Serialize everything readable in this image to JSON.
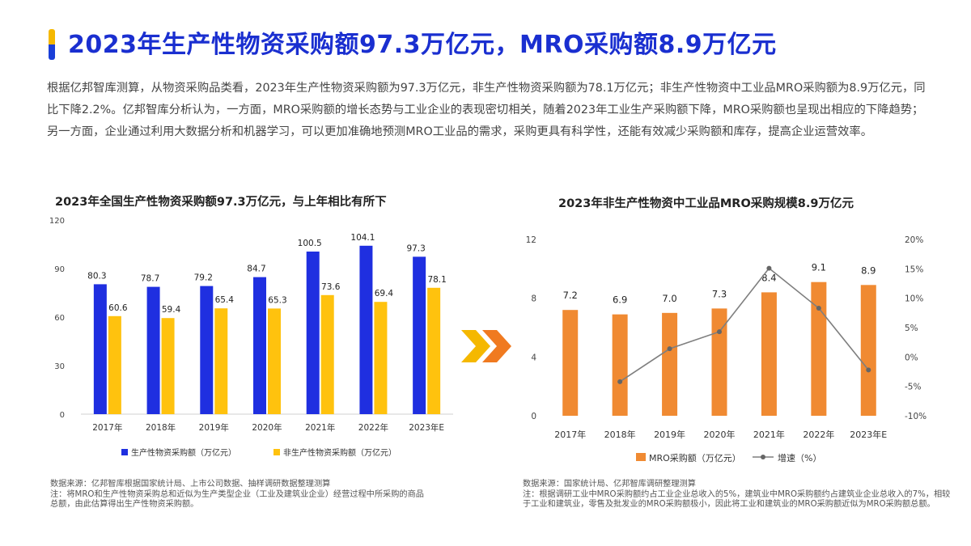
{
  "title": "2023年生产性物资采购额97.3万亿元，MRO采购额8.9万亿元",
  "paragraph": "根据亿邦智库测算，从物资采购品类看，2023年生产性物资采购额为97.3万亿元，非生产性物资采购额为78.1万亿元；非生产性物资中工业品MRO采购额为8.9万亿元，同比下降2.2%。亿邦智库分析认为，一方面，MRO采购额的增长态势与工业企业的表现密切相关，随着2023年工业生产采购额下降，MRO采购额也呈现出相应的下降趋势；另一方面，企业通过利用大数据分析和机器学习，可以更加准确地预测MRO工业品的需求，采购更具有科学性，还能有效减少采购额和库存，提高企业运营效率。",
  "colors": {
    "title": "#1a2fd0",
    "blue_bar": "#1f2fe0",
    "yellow_bar": "#ffc20e",
    "orange_bar": "#f08a32",
    "line": "#7f7f7f",
    "arrow_yellow": "#f5b800",
    "arrow_orange": "#f07a20"
  },
  "chart_data": [
    {
      "type": "bar",
      "title": "2023年全国生产性物资采购额97.3万亿元，与上年相比有所下",
      "categories": [
        "2017年",
        "2018年",
        "2019年",
        "2020年",
        "2021年",
        "2022年",
        "2023年E"
      ],
      "series": [
        {
          "name": "生产性物资采购额（万亿元）",
          "values": [
            80.3,
            78.7,
            79.2,
            84.7,
            100.5,
            104.1,
            97.3
          ]
        },
        {
          "name": "非生产性物资采购额（万亿元）",
          "values": [
            60.6,
            59.4,
            65.4,
            65.3,
            73.6,
            69.4,
            78.1
          ]
        }
      ],
      "y_ticks": [
        "0",
        "30",
        "60",
        "90",
        "120"
      ],
      "ylim": [
        0,
        120
      ],
      "legend": "bottom"
    },
    {
      "type": "bar",
      "title": "2023年非生产性物资中工业品MRO采购规模8.9万亿元",
      "categories": [
        "2017年",
        "2018年",
        "2019年",
        "2020年",
        "2021年",
        "2022年",
        "2023年E"
      ],
      "series": [
        {
          "name": "MRO采购额（万亿元）",
          "values": [
            7.2,
            6.9,
            7.0,
            7.3,
            8.4,
            9.1,
            8.9
          ],
          "axis": "left"
        },
        {
          "name": "增速（%）",
          "type": "line",
          "values": [
            null,
            -4.2,
            1.4,
            4.3,
            15.1,
            8.3,
            -2.2
          ],
          "axis": "right"
        }
      ],
      "y_ticks": [
        "0",
        "4",
        "8",
        "12"
      ],
      "ylim": [
        0,
        12
      ],
      "y2_ticks": [
        "-10%",
        "-5%",
        "0%",
        "5%",
        "10%",
        "15%",
        "20%"
      ],
      "y2lim": [
        -10,
        20
      ],
      "legend": "bottom"
    }
  ],
  "notes": {
    "left": "数据来源：亿邦智库根据国家统计局、上市公司数据、抽样调研数据整理测算\n注：将MRO和生产性物资采购总和近似为生产类型企业（工业及建筑业企业）经营过程中所采购的商品总额，由此估算得出生产性物资采购额。",
    "right": "数据来源：国家统计局、亿邦智库调研整理测算\n注：根据调研工业中MRO采购额约占工业企业总收入的5%，建筑业中MRO采购额约占建筑业企业总收入的7%，相较于工业和建筑业，零售及批发业的MRO采购额极小，因此将工业和建筑业的MRO采购额近似为MRO采购额总额。"
  }
}
